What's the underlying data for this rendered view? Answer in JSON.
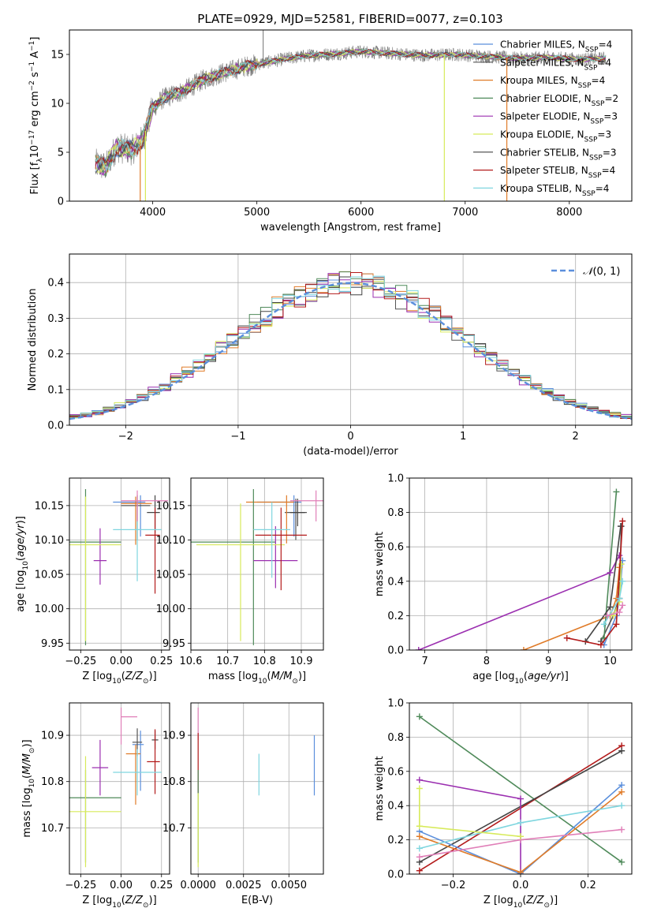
{
  "figure": {
    "title": "PLATE=0929, MJD=52581, FIBERID=0077, z=0.103"
  },
  "colors": {
    "chabrier_miles": "#5b8fdc",
    "salpeter_miles": "#555555",
    "kroupa_miles": "#e07b28",
    "chabrier_elodie": "#4f8a5a",
    "salpeter_elodie": "#9b2fb0",
    "kroupa_elodie": "#d7ea5a",
    "chabrier_stelib": "#444444",
    "salpeter_stelib": "#b31b1b",
    "kroupa_stelib": "#7fd6df",
    "pink": "#e07fb8",
    "normal_curve": "#5b8fdc"
  },
  "chart_data": [
    {
      "id": "spectrum",
      "type": "line",
      "xlabel": "wavelength [Angstrom, rest frame]",
      "ylabel": "Flux [f_λ 10^-17 erg cm^-2 s^-1 A^-1]",
      "xlim": [
        3200,
        8600
      ],
      "ylim": [
        0,
        17.5
      ],
      "xticks": [
        4000,
        5000,
        6000,
        7000,
        8000
      ],
      "yticks": [
        0,
        5,
        10,
        15
      ],
      "grid": false,
      "legend_position": "right",
      "legend": [
        {
          "label": "Chabrier MILES, N_SSP=4",
          "color": "#5b8fdc"
        },
        {
          "label": "Salpeter MILES, N_SSP=4",
          "color": "#555555"
        },
        {
          "label": "Kroupa MILES, N_SSP=4",
          "color": "#e07b28"
        },
        {
          "label": "Chabrier ELODIE, N_SSP=2",
          "color": "#4f8a5a"
        },
        {
          "label": "Salpeter ELODIE, N_SSP=3",
          "color": "#9b2fb0"
        },
        {
          "label": "Kroupa ELODIE, N_SSP=3",
          "color": "#d7ea5a"
        },
        {
          "label": "Chabrier STELIB, N_SSP=3",
          "color": "#444444"
        },
        {
          "label": "Salpeter STELIB, N_SSP=4",
          "color": "#b31b1b"
        },
        {
          "label": "Kroupa STELIB, N_SSP=4",
          "color": "#7fd6df"
        }
      ],
      "continuum_x": [
        3450,
        3550,
        3650,
        3800,
        3900,
        4000,
        4100,
        4300,
        4500,
        4700,
        4900,
        5100,
        5300,
        5500,
        5800,
        6000,
        6300,
        6600,
        6900,
        7200,
        7500,
        7800,
        8100,
        8350
      ],
      "continuum_y": [
        3.8,
        3.5,
        5.5,
        5.2,
        6.2,
        9.5,
        10.5,
        11.3,
        12.5,
        13.2,
        13.8,
        14.2,
        14.6,
        14.9,
        15.1,
        15.3,
        15.1,
        14.9,
        15.0,
        14.8,
        14.6,
        14.7,
        14.5,
        14.6
      ],
      "spikes": [
        {
          "x": 3880,
          "y": 0,
          "color": "#e07b28"
        },
        {
          "x": 3930,
          "y": 0,
          "color": "#d7ea5a"
        },
        {
          "x": 5060,
          "y": 17.5,
          "color": "#888888"
        },
        {
          "x": 6800,
          "y": 0,
          "color": "#d7ea5a"
        },
        {
          "x": 7400,
          "y": 0,
          "color": "#e07b28"
        }
      ]
    },
    {
      "id": "residual_histogram",
      "type": "area",
      "xlabel": "(data-model)/error",
      "ylabel": "Normed distribution",
      "xlim": [
        -2.5,
        2.5
      ],
      "ylim": [
        0,
        0.48
      ],
      "xticks": [
        -2,
        -1,
        0,
        1,
        2
      ],
      "yticks": [
        0.0,
        0.1,
        0.2,
        0.3,
        0.4
      ],
      "grid": true,
      "legend_position": "top-right",
      "legend": [
        {
          "label": "N(0,1)",
          "color": "#5b8fdc"
        }
      ],
      "bin_width": 0.1,
      "curve": "normal(0,1)"
    },
    {
      "id": "age_vs_Z",
      "type": "scatter",
      "xlabel": "Z [log10(Z/Z_⊙)]",
      "ylabel": "age [log10(age/yr)]",
      "xlim": [
        -0.32,
        0.3
      ],
      "ylim": [
        9.94,
        10.19
      ],
      "xticks": [
        -0.25,
        0.0,
        0.25
      ],
      "yticks": [
        9.95,
        10.0,
        10.05,
        10.1,
        10.15
      ],
      "grid": true,
      "points": [
        {
          "x": 0.12,
          "xerr": [
            0.17,
            0.03
          ],
          "y": 10.155,
          "yerr": [
            0.05,
            0.01
          ],
          "color": "#5b8fdc"
        },
        {
          "x": 0.1,
          "xerr": [
            0.1,
            0.08
          ],
          "y": 10.15,
          "yerr": [
            0.05,
            0.015
          ],
          "color": "#555555"
        },
        {
          "x": 0.09,
          "xerr": [
            0.09,
            0.1
          ],
          "y": 10.153,
          "yerr": [
            0.06,
            0.01
          ],
          "color": "#e07b28"
        },
        {
          "x": -0.22,
          "xerr": [
            0.1,
            0.22
          ],
          "y": 10.097,
          "yerr": [
            0.15,
            0.077
          ],
          "color": "#4f8a5a"
        },
        {
          "x": -0.13,
          "xerr": [
            0.04,
            0.04
          ],
          "y": 10.07,
          "yerr": [
            0.035,
            0.047
          ],
          "color": "#9b2fb0"
        },
        {
          "x": -0.22,
          "xerr": [
            0.1,
            0.22
          ],
          "y": 10.093,
          "yerr": [
            0.14,
            0.07
          ],
          "color": "#d7ea5a"
        },
        {
          "x": 0.21,
          "xerr": [
            0.05,
            0.03
          ],
          "y": 10.14,
          "yerr": [
            0.03,
            0.025
          ],
          "color": "#444444"
        },
        {
          "x": 0.21,
          "xerr": [
            0.06,
            0.03
          ],
          "y": 10.107,
          "yerr": [
            0.085,
            0.04
          ],
          "color": "#b31b1b"
        },
        {
          "x": 0.1,
          "xerr": [
            0.15,
            0.15
          ],
          "y": 10.115,
          "yerr": [
            0.075,
            0.04
          ],
          "color": "#7fd6df"
        },
        {
          "x": 0.1,
          "xerr": [
            0.1,
            0.19
          ],
          "y": 10.157,
          "yerr": [
            0.03,
            0.015
          ],
          "color": "#e07fb8"
        }
      ]
    },
    {
      "id": "age_vs_mass",
      "type": "scatter",
      "xlabel": "mass [log10(M/M_⊙)]",
      "ylabel": "",
      "xlim": [
        10.6,
        10.96
      ],
      "ylim": [
        9.94,
        10.19
      ],
      "xticks": [
        10.6,
        10.7,
        10.8,
        10.9
      ],
      "yticks": [
        9.95,
        10.0,
        10.05,
        10.1,
        10.15
      ],
      "grid": true,
      "points": [
        {
          "x": 10.88,
          "xerr": [
            0.1,
            0.02
          ],
          "y": 10.155,
          "yerr": [
            0.05,
            0.01
          ],
          "color": "#5b8fdc"
        },
        {
          "x": 10.885,
          "xerr": [
            0.03,
            0.03
          ],
          "y": 10.14,
          "yerr": [
            0.04,
            0.02
          ],
          "color": "#555555"
        },
        {
          "x": 10.86,
          "xerr": [
            0.11,
            0.02
          ],
          "y": 10.155,
          "yerr": [
            0.06,
            0.01
          ],
          "color": "#e07b28"
        },
        {
          "x": 10.77,
          "xerr": [
            0.17,
            0.06
          ],
          "y": 10.097,
          "yerr": [
            0.15,
            0.077
          ],
          "color": "#4f8a5a"
        },
        {
          "x": 10.83,
          "xerr": [
            0.06,
            0.06
          ],
          "y": 10.07,
          "yerr": [
            0.04,
            0.05
          ],
          "color": "#9b2fb0"
        },
        {
          "x": 10.735,
          "xerr": [
            0.12,
            0.12
          ],
          "y": 10.093,
          "yerr": [
            0.14,
            0.06
          ],
          "color": "#d7ea5a"
        },
        {
          "x": 10.89,
          "xerr": [
            0.02,
            0.02
          ],
          "y": 10.14,
          "yerr": [
            0.02,
            0.02
          ],
          "color": "#444444"
        },
        {
          "x": 10.845,
          "xerr": [
            0.07,
            0.07
          ],
          "y": 10.107,
          "yerr": [
            0.08,
            0.04
          ],
          "color": "#b31b1b"
        },
        {
          "x": 10.82,
          "xerr": [
            0.05,
            0.05
          ],
          "y": 10.115,
          "yerr": [
            0.07,
            0.04
          ],
          "color": "#7fd6df"
        },
        {
          "x": 10.94,
          "xerr": [
            0.07,
            0.02
          ],
          "y": 10.157,
          "yerr": [
            0.03,
            0.015
          ],
          "color": "#e07fb8"
        }
      ]
    },
    {
      "id": "weight_vs_age",
      "type": "line",
      "xlabel": "age [log10(age/yr)]",
      "ylabel": "mass weight",
      "xlim": [
        6.75,
        10.35
      ],
      "ylim": [
        0,
        1.0
      ],
      "xticks": [
        7,
        8,
        9,
        10
      ],
      "yticks": [
        0.0,
        0.2,
        0.4,
        0.6,
        0.8,
        1.0
      ],
      "grid": true,
      "series": [
        {
          "color": "#5b8fdc",
          "x": [
            9.9,
            10.1,
            10.15,
            10.2
          ],
          "y": [
            0.03,
            0.2,
            0.3,
            0.52
          ]
        },
        {
          "color": "#555555",
          "x": [
            9.85,
            10.05,
            10.15,
            10.18
          ],
          "y": [
            0.05,
            0.2,
            0.3,
            0.72
          ]
        },
        {
          "color": "#e07b28",
          "x": [
            8.6,
            10.0,
            10.1,
            10.15
          ],
          "y": [
            0.0,
            0.2,
            0.3,
            0.48
          ]
        },
        {
          "color": "#4f8a5a",
          "x": [
            9.9,
            10.1
          ],
          "y": [
            0.07,
            0.92
          ]
        },
        {
          "color": "#9b2fb0",
          "x": [
            6.9,
            10.0,
            10.15
          ],
          "y": [
            0.0,
            0.45,
            0.55
          ]
        },
        {
          "color": "#d7ea5a",
          "x": [
            10.05,
            10.15,
            10.18
          ],
          "y": [
            0.2,
            0.28,
            0.5
          ]
        },
        {
          "color": "#444444",
          "x": [
            9.6,
            10.0,
            10.17
          ],
          "y": [
            0.05,
            0.25,
            0.72
          ]
        },
        {
          "color": "#b31b1b",
          "x": [
            9.3,
            9.85,
            10.1,
            10.2
          ],
          "y": [
            0.07,
            0.03,
            0.15,
            0.75
          ]
        },
        {
          "color": "#7fd6df",
          "x": [
            9.9,
            10.15,
            10.2
          ],
          "y": [
            0.15,
            0.3,
            0.4
          ]
        },
        {
          "color": "#e07fb8",
          "x": [
            9.95,
            10.15,
            10.2
          ],
          "y": [
            0.2,
            0.22,
            0.26
          ]
        }
      ]
    },
    {
      "id": "mass_vs_Z",
      "type": "scatter",
      "xlabel": "Z [log10(Z/Z_⊙)]",
      "ylabel": "mass [log10(M/M_⊙)]",
      "xlim": [
        -0.32,
        0.3
      ],
      "ylim": [
        10.6,
        10.97
      ],
      "xticks": [
        -0.25,
        0.0,
        0.25
      ],
      "yticks": [
        10.7,
        10.8,
        10.9
      ],
      "grid": true,
      "points": [
        {
          "x": 0.12,
          "xerr": [
            0.05,
            0.02
          ],
          "y": 10.88,
          "yerr": [
            0.1,
            0.03
          ],
          "color": "#5b8fdc"
        },
        {
          "x": 0.1,
          "xerr": [
            0.03,
            0.03
          ],
          "y": 10.885,
          "yerr": [
            0.03,
            0.03
          ],
          "color": "#555555"
        },
        {
          "x": 0.09,
          "xerr": [
            0.06,
            0.03
          ],
          "y": 10.86,
          "yerr": [
            0.11,
            0.02
          ],
          "color": "#e07b28"
        },
        {
          "x": -0.22,
          "xerr": [
            0.1,
            0.22
          ],
          "y": 10.765,
          "yerr": [
            0.14,
            0.06
          ],
          "color": "#4f8a5a"
        },
        {
          "x": -0.13,
          "xerr": [
            0.05,
            0.05
          ],
          "y": 10.83,
          "yerr": [
            0.06,
            0.06
          ],
          "color": "#9b2fb0"
        },
        {
          "x": -0.22,
          "xerr": [
            0.1,
            0.22
          ],
          "y": 10.735,
          "yerr": [
            0.12,
            0.12
          ],
          "color": "#d7ea5a"
        },
        {
          "x": 0.21,
          "xerr": [
            0.02,
            0.02
          ],
          "y": 10.89,
          "yerr": [
            0.02,
            0.02
          ],
          "color": "#444444"
        },
        {
          "x": 0.21,
          "xerr": [
            0.05,
            0.03
          ],
          "y": 10.843,
          "yerr": [
            0.07,
            0.07
          ],
          "color": "#b31b1b"
        },
        {
          "x": 0.1,
          "xerr": [
            0.15,
            0.15
          ],
          "y": 10.82,
          "yerr": [
            0.05,
            0.05
          ],
          "color": "#7fd6df"
        },
        {
          "x": 0.0,
          "xerr": [
            0.0,
            0.1
          ],
          "y": 10.94,
          "yerr": [
            0.06,
            0.02
          ],
          "color": "#e07fb8"
        }
      ]
    },
    {
      "id": "mass_vs_ebv",
      "type": "scatter",
      "xlabel": "E(B-V)",
      "ylabel": "",
      "xlim": [
        -0.0004,
        0.0069
      ],
      "ylim": [
        10.6,
        10.97
      ],
      "xticks": [
        0.0,
        0.0025,
        0.005
      ],
      "xtick_labels": [
        "0.0000",
        "0.0025",
        "0.0050"
      ],
      "yticks": [
        10.7,
        10.8,
        10.9
      ],
      "grid": true,
      "points": [
        {
          "x": 0.0064,
          "y": 10.84,
          "yerr": [
            0.07,
            0.06
          ],
          "color": "#5b8fdc"
        },
        {
          "x": 0.00335,
          "y": 10.815,
          "yerr": [
            0.045,
            0.045
          ],
          "color": "#7fd6df"
        },
        {
          "x": 0.0,
          "y": 10.94,
          "yerr": [
            0.05,
            0.02
          ],
          "color": "#e07fb8"
        },
        {
          "x": 0.0,
          "y": 10.84,
          "yerr": [
            0.065,
            0.065
          ],
          "color": "#b31b1b"
        },
        {
          "x": 0.0,
          "y": 10.765,
          "yerr": [
            0.14,
            0.06
          ],
          "color": "#4f8a5a"
        },
        {
          "x": 0.0,
          "y": 10.735,
          "yerr": [
            0.12,
            0.04
          ],
          "color": "#d7ea5a"
        }
      ]
    },
    {
      "id": "weight_vs_Z",
      "type": "line",
      "xlabel": "Z [log10(Z/Z_⊙)]",
      "ylabel": "mass weight",
      "xlim": [
        -0.33,
        0.33
      ],
      "ylim": [
        0,
        1.0
      ],
      "xticks": [
        -0.2,
        0.0,
        0.2
      ],
      "yticks": [
        0.0,
        0.2,
        0.4,
        0.6,
        0.8,
        1.0
      ],
      "grid": true,
      "series": [
        {
          "color": "#4f8a5a",
          "x": [
            -0.3,
            0.3
          ],
          "y": [
            0.92,
            0.07
          ]
        },
        {
          "color": "#b31b1b",
          "x": [
            -0.3,
            0.3
          ],
          "y": [
            0.02,
            0.75
          ]
        },
        {
          "color": "#444444",
          "x": [
            -0.3,
            0.3
          ],
          "y": [
            0.07,
            0.72
          ]
        },
        {
          "color": "#9b2fb0",
          "x": [
            -0.3,
            0.0,
            0.0
          ],
          "y": [
            0.55,
            0.44,
            0.0
          ]
        },
        {
          "color": "#5b8fdc",
          "x": [
            -0.3,
            0.0,
            0.3
          ],
          "y": [
            0.25,
            0.0,
            0.52
          ]
        },
        {
          "color": "#e07b28",
          "x": [
            -0.3,
            0.0,
            0.3
          ],
          "y": [
            0.22,
            0.01,
            0.48
          ]
        },
        {
          "color": "#7fd6df",
          "x": [
            -0.3,
            0.0,
            0.3
          ],
          "y": [
            0.15,
            0.3,
            0.4
          ]
        },
        {
          "color": "#e07fb8",
          "x": [
            -0.3,
            0.0,
            0.3
          ],
          "y": [
            0.1,
            0.2,
            0.26
          ]
        },
        {
          "color": "#d7ea5a",
          "x": [
            -0.3,
            -0.3,
            0.0
          ],
          "y": [
            0.5,
            0.28,
            0.22
          ]
        }
      ]
    }
  ]
}
